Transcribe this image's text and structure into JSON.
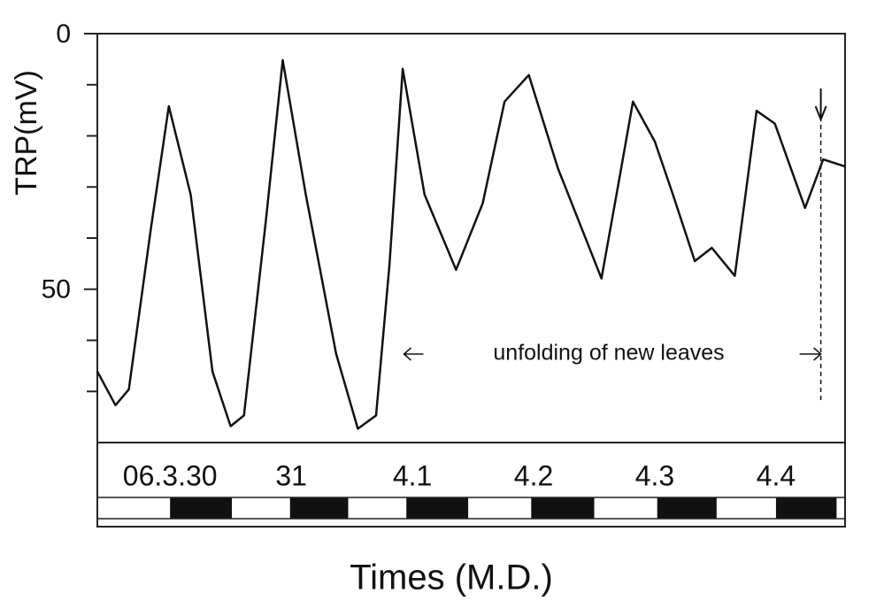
{
  "chart_data": {
    "type": "line",
    "ylabel": "TRP(mV)",
    "xlabel": "Times (M.D.)",
    "x": [
      -0.6,
      -0.45,
      -0.34,
      -0.16,
      -0.01,
      0.17,
      0.35,
      0.5,
      0.61,
      0.79,
      0.93,
      1.12,
      1.37,
      1.55,
      1.7,
      1.81,
      1.92,
      2.1,
      2.36,
      2.58,
      2.76,
      2.96,
      3.2,
      3.56,
      3.71,
      3.82,
      4.0,
      4.15,
      4.33,
      4.47,
      4.66,
      4.84,
      4.99,
      5.24,
      5.39,
      5.57
    ],
    "series": [
      {
        "name": "TRP",
        "color": "#111111",
        "values": [
          -66.1,
          -72.7,
          -69.6,
          -38.4,
          -14.2,
          -31.5,
          -66.1,
          -76.8,
          -74.7,
          -36.7,
          -5.2,
          -31.5,
          -62.6,
          -77.3,
          -74.7,
          -45.3,
          -6.9,
          -31.5,
          -46.2,
          -33.2,
          -13.3,
          -8.1,
          -26.3,
          -47.9,
          -28.0,
          -13.3,
          -21.1,
          -31.5,
          -44.5,
          -41.9,
          -47.4,
          -15.1,
          -17.6,
          -34.1,
          -24.6,
          -26.0
        ]
      }
    ],
    "xlim": [
      -0.6,
      5.57
    ],
    "xticks": [
      {
        "value": 0,
        "label": "06.3.30"
      },
      {
        "value": 1,
        "label": "31"
      },
      {
        "value": 2,
        "label": "4.1"
      },
      {
        "value": 3,
        "label": "4.2"
      },
      {
        "value": 4,
        "label": "4.3"
      },
      {
        "value": 5,
        "label": "4.4"
      }
    ],
    "ylim": [
      -80,
      0
    ],
    "yticks": [
      0,
      {
        "value": -50,
        "label": "50"
      }
    ],
    "yminorticks": [
      -10,
      -20,
      -30,
      -40,
      -60,
      -70
    ],
    "nights": [
      [
        0,
        0.51
      ],
      [
        0.99,
        1.47
      ],
      [
        1.95,
        2.46
      ],
      [
        2.98,
        3.5
      ],
      [
        4.02,
        4.51
      ],
      [
        5.0,
        5.5
      ]
    ],
    "annotation": {
      "text": "unfolding of new leaves",
      "x_start": 1.93,
      "x_end": 5.37
    }
  }
}
